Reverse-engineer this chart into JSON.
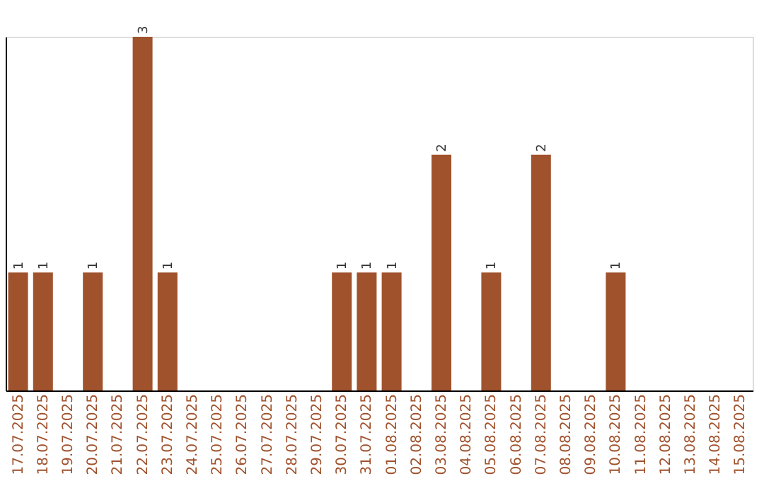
{
  "chart_data": {
    "type": "bar",
    "categories": [
      "17.07.2025",
      "18.07.2025",
      "19.07.2025",
      "20.07.2025",
      "21.07.2025",
      "22.07.2025",
      "23.07.2025",
      "24.07.2025",
      "25.07.2025",
      "26.07.2025",
      "27.07.2025",
      "28.07.2025",
      "29.07.2025",
      "30.07.2025",
      "31.07.2025",
      "01.08.2025",
      "02.08.2025",
      "03.08.2025",
      "04.08.2025",
      "05.08.2025",
      "06.08.2025",
      "07.08.2025",
      "08.08.2025",
      "09.08.2025",
      "10.08.2025",
      "11.08.2025",
      "12.08.2025",
      "13.08.2025",
      "14.08.2025",
      "15.08.2025"
    ],
    "values": [
      1,
      1,
      0,
      1,
      0,
      3,
      1,
      0,
      0,
      0,
      0,
      0,
      0,
      1,
      1,
      1,
      0,
      2,
      0,
      1,
      0,
      2,
      0,
      0,
      1,
      0,
      0,
      0,
      0,
      0
    ],
    "value_labels": [
      "1",
      "1",
      null,
      "1",
      null,
      "3",
      "1",
      null,
      null,
      null,
      null,
      null,
      null,
      "1",
      "1",
      "1",
      null,
      "2",
      null,
      "1",
      null,
      "2",
      null,
      null,
      "1",
      null,
      null,
      null,
      null,
      null
    ],
    "color": "#a0522d",
    "ylim": [
      0,
      3
    ],
    "tick_labels": "x",
    "grid": false
  }
}
